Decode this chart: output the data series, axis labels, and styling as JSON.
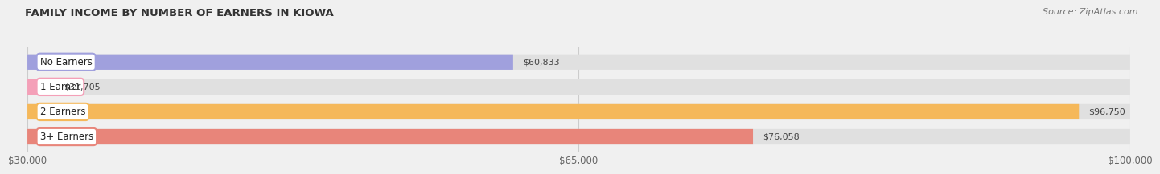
{
  "title": "FAMILY INCOME BY NUMBER OF EARNERS IN KIOWA",
  "source": "Source: ZipAtlas.com",
  "categories": [
    "No Earners",
    "1 Earner",
    "2 Earners",
    "3+ Earners"
  ],
  "values": [
    60833,
    31705,
    96750,
    76058
  ],
  "bar_colors": [
    "#a0a0dd",
    "#f4a0b8",
    "#f5b85a",
    "#e8857a"
  ],
  "value_labels": [
    "$60,833",
    "$31,705",
    "$96,750",
    "$76,058"
  ],
  "xmin": 30000,
  "xmax": 100000,
  "xticks": [
    30000,
    65000,
    100000
  ],
  "xtick_labels": [
    "$30,000",
    "$65,000",
    "$100,000"
  ],
  "background_color": "#f0f0f0",
  "bar_background": "#e0e0e0",
  "figwidth": 14.06,
  "figheight": 2.33
}
